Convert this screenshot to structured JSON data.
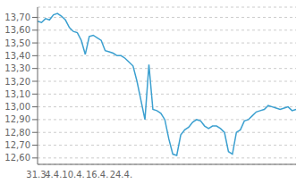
{
  "chart_data": {
    "type": "line",
    "categories": [
      "31.3.",
      null,
      null,
      null,
      "4.4.",
      null,
      null,
      null,
      null,
      "10.4.",
      null,
      null,
      null,
      null,
      null,
      "16.4.",
      null,
      null,
      null,
      null,
      null,
      "24.4.",
      null,
      null,
      null,
      null,
      null,
      null,
      null,
      null,
      null,
      null,
      null,
      null,
      null,
      null,
      null,
      null,
      null,
      null,
      null,
      null,
      null,
      null,
      null,
      null,
      null,
      null,
      null,
      null,
      null,
      null,
      null,
      null,
      null,
      null,
      null,
      null,
      null,
      null,
      null,
      null,
      null,
      null,
      null,
      null
    ],
    "values": [
      13.67,
      13.66,
      13.69,
      13.68,
      13.72,
      13.73,
      13.71,
      13.68,
      13.62,
      13.59,
      13.58,
      13.52,
      13.41,
      13.55,
      13.56,
      13.54,
      13.52,
      13.44,
      13.43,
      13.42,
      13.4,
      13.4,
      13.38,
      13.35,
      13.32,
      13.2,
      13.05,
      12.9,
      13.33,
      12.98,
      12.97,
      12.95,
      12.9,
      12.75,
      12.63,
      12.62,
      12.78,
      12.82,
      12.84,
      12.88,
      12.9,
      12.89,
      12.85,
      12.83,
      12.85,
      12.85,
      12.83,
      12.8,
      12.65,
      12.63,
      12.8,
      12.82,
      12.89,
      12.9,
      12.93,
      12.96,
      12.97,
      12.98,
      13.01,
      13.0,
      12.99,
      12.98,
      12.99,
      13.0,
      12.97,
      12.98
    ],
    "color": "#3ca0d0",
    "ylim": [
      12.55,
      13.78
    ],
    "yticks": [
      {
        "value": 12.6,
        "label": "12,60"
      },
      {
        "value": 12.7,
        "label": "12,70"
      },
      {
        "value": 12.8,
        "label": "12,80"
      },
      {
        "value": 12.9,
        "label": "12,90"
      },
      {
        "value": 13.0,
        "label": "13,00"
      },
      {
        "value": 13.1,
        "label": "13,10"
      },
      {
        "value": 13.2,
        "label": "13,20"
      },
      {
        "value": 13.3,
        "label": "13,30"
      },
      {
        "value": 13.4,
        "label": "13,40"
      },
      {
        "value": 13.5,
        "label": "13,50"
      },
      {
        "value": 13.6,
        "label": "13,60"
      },
      {
        "value": 13.7,
        "label": "13,70"
      }
    ],
    "grid": true
  }
}
